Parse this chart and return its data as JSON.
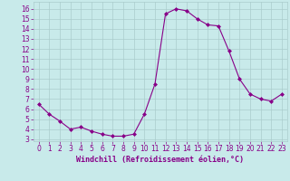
{
  "x": [
    0,
    1,
    2,
    3,
    4,
    5,
    6,
    7,
    8,
    9,
    10,
    11,
    12,
    13,
    14,
    15,
    16,
    17,
    18,
    19,
    20,
    21,
    22,
    23
  ],
  "y": [
    6.5,
    5.5,
    4.8,
    4.0,
    4.2,
    3.8,
    3.5,
    3.3,
    3.3,
    3.5,
    5.5,
    8.5,
    15.5,
    16.0,
    15.8,
    15.0,
    14.4,
    14.3,
    11.8,
    9.0,
    7.5,
    7.0,
    6.8,
    7.5
  ],
  "line_color": "#880088",
  "marker": "D",
  "marker_size": 2.0,
  "bg_color": "#c8eaea",
  "grid_color": "#aacccc",
  "xlabel": "Windchill (Refroidissement éolien,°C)",
  "xlabel_color": "#880088",
  "tick_color": "#880088",
  "xlim": [
    -0.5,
    23.5
  ],
  "ylim": [
    2.8,
    16.7
  ],
  "yticks": [
    3,
    4,
    5,
    6,
    7,
    8,
    9,
    10,
    11,
    12,
    13,
    14,
    15,
    16
  ],
  "xticks": [
    0,
    1,
    2,
    3,
    4,
    5,
    6,
    7,
    8,
    9,
    10,
    11,
    12,
    13,
    14,
    15,
    16,
    17,
    18,
    19,
    20,
    21,
    22,
    23
  ],
  "font_size": 5.5,
  "xlabel_font_size": 6.0
}
